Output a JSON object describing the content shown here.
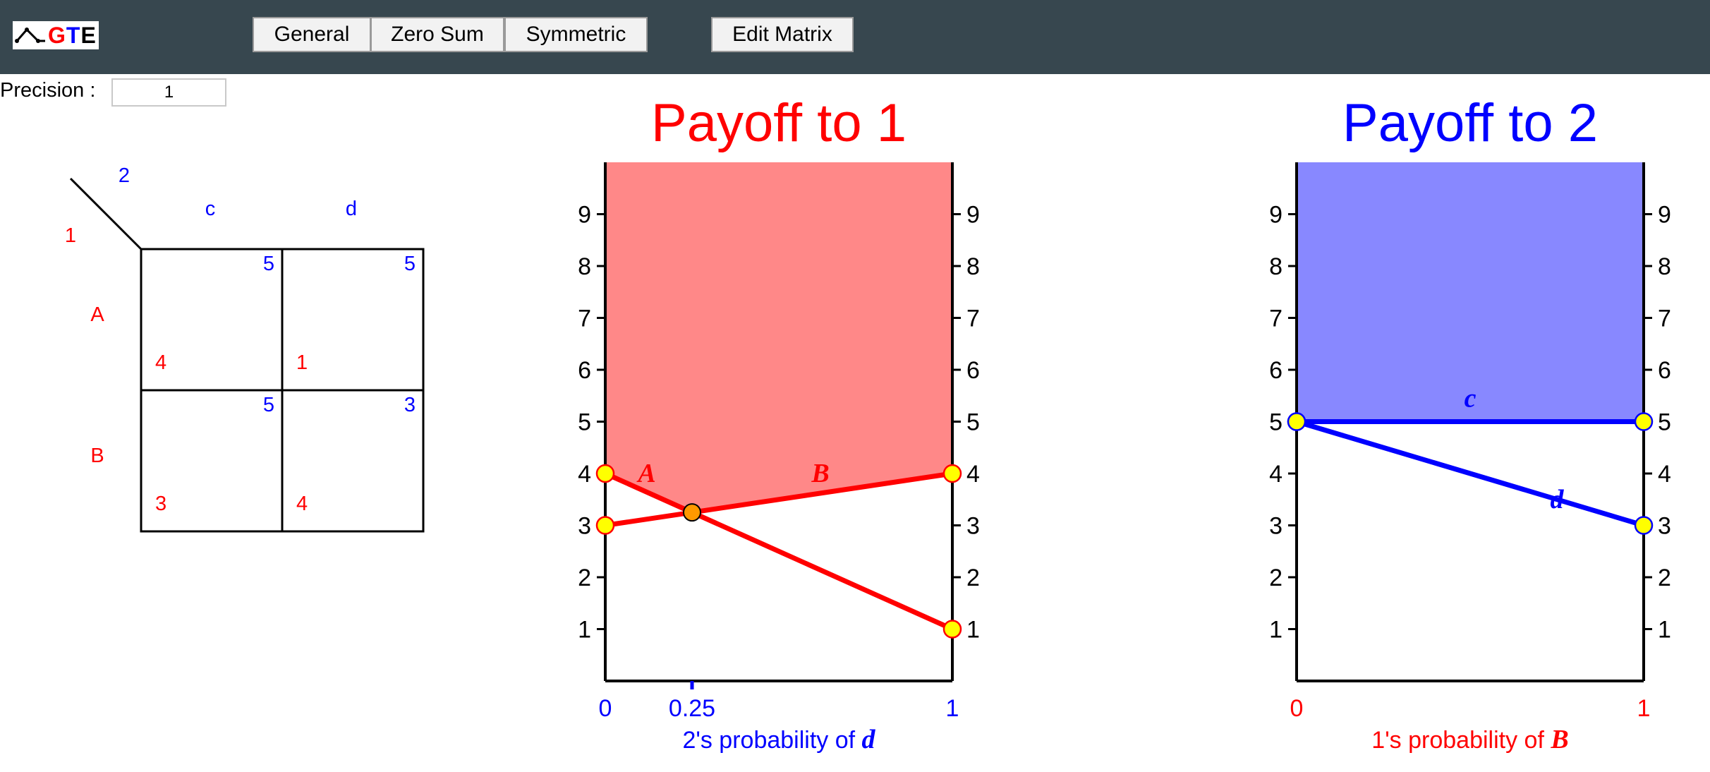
{
  "toolbar": {
    "logo_g": "G",
    "logo_t": "T",
    "logo_e": "E",
    "general_label": "General",
    "zero_sum_label": "Zero Sum",
    "symmetric_label": "Symmetric",
    "edit_matrix_label": "Edit Matrix"
  },
  "precision": {
    "label": "Precision :",
    "value": "1"
  },
  "matrix": {
    "player1": "1",
    "player2": "2",
    "col1": "c",
    "col2": "d",
    "row1": "A",
    "row2": "B",
    "cells": [
      {
        "p2": "5",
        "p1": "4"
      },
      {
        "p2": "5",
        "p1": "1"
      },
      {
        "p2": "5",
        "p1": "3"
      },
      {
        "p2": "3",
        "p1": "4"
      }
    ]
  },
  "chart_data": [
    {
      "type": "line",
      "title": "Payoff to 1",
      "xlabel_prefix": "2's probability of ",
      "xlabel_strategy": "d",
      "x_ticks": [
        "0",
        "0.25",
        "1"
      ],
      "y_ticks": [
        "1",
        "2",
        "3",
        "4",
        "5",
        "6",
        "7",
        "8",
        "9"
      ],
      "ylim": [
        0,
        10
      ],
      "xlim": [
        0,
        1
      ],
      "upper_envelope_shaded": true,
      "shade_color": "#ff8888",
      "line_color": "#ff0000",
      "series": [
        {
          "name": "A",
          "x": [
            0,
            1
          ],
          "y": [
            4,
            1
          ]
        },
        {
          "name": "B",
          "x": [
            0,
            1
          ],
          "y": [
            3,
            4
          ]
        }
      ],
      "intersection": {
        "x": 0.25,
        "y": 3.25
      }
    },
    {
      "type": "line",
      "title": "Payoff to 2",
      "xlabel_prefix": "1's probability of ",
      "xlabel_strategy": "B",
      "x_ticks": [
        "0",
        "1"
      ],
      "y_ticks": [
        "1",
        "2",
        "3",
        "4",
        "5",
        "6",
        "7",
        "8",
        "9"
      ],
      "ylim": [
        0,
        10
      ],
      "xlim": [
        0,
        1
      ],
      "upper_envelope_shaded": true,
      "shade_color": "#8888ff",
      "line_color": "#0000ff",
      "series": [
        {
          "name": "c",
          "x": [
            0,
            1
          ],
          "y": [
            5,
            5
          ]
        },
        {
          "name": "d",
          "x": [
            0,
            1
          ],
          "y": [
            5,
            3
          ]
        }
      ]
    }
  ]
}
